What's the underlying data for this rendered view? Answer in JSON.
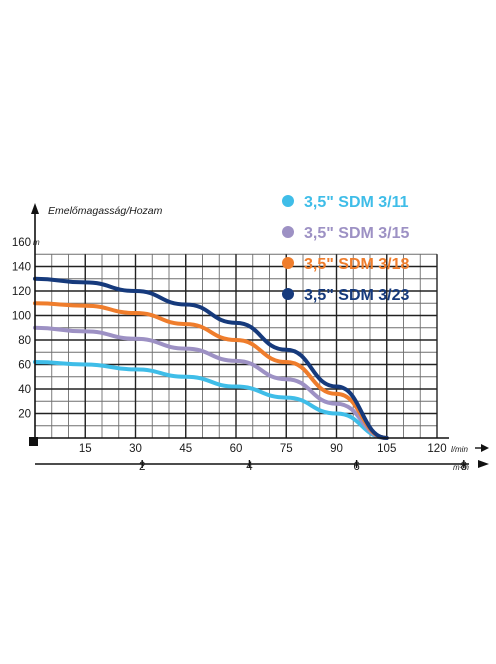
{
  "chart_data": {
    "type": "line",
    "ylabel": "Emelőmagasság/Hozam",
    "y_unit": "m",
    "x_unit": "l/min",
    "x2_unit": "m³/h",
    "xlim": [
      0,
      120
    ],
    "ylim": [
      0,
      160
    ],
    "x_ticks": [
      "15",
      "30",
      "45",
      "60",
      "75",
      "90",
      "105",
      "120"
    ],
    "y_ticks": [
      "20",
      "40",
      "60",
      "80",
      "100",
      "120",
      "140",
      "160"
    ],
    "x2_ticks": [
      "2",
      "4",
      "6",
      "8"
    ],
    "grid": true,
    "legend_position": "top-right",
    "series": [
      {
        "name": "3,5\" SDM 3/11",
        "color": "#3fbde8",
        "x": [
          0,
          15,
          30,
          45,
          60,
          75,
          90,
          105
        ],
        "y": [
          62,
          60,
          56,
          50,
          42,
          33,
          20,
          0
        ]
      },
      {
        "name": "3,5\" SDM 3/15",
        "color": "#9d91c4",
        "x": [
          0,
          15,
          30,
          45,
          60,
          75,
          90,
          105
        ],
        "y": [
          90,
          87,
          81,
          73,
          63,
          48,
          28,
          0
        ]
      },
      {
        "name": "3,5\" SDM 3/18",
        "color": "#ef7d2c",
        "x": [
          0,
          15,
          30,
          45,
          60,
          75,
          90,
          105
        ],
        "y": [
          110,
          108,
          102,
          93,
          80,
          62,
          36,
          0
        ]
      },
      {
        "name": "3,5\" SDM 3/23",
        "color": "#163a7c",
        "x": [
          0,
          15,
          30,
          45,
          60,
          75,
          90,
          105
        ],
        "y": [
          130,
          127,
          120,
          109,
          94,
          72,
          42,
          0
        ]
      }
    ]
  }
}
